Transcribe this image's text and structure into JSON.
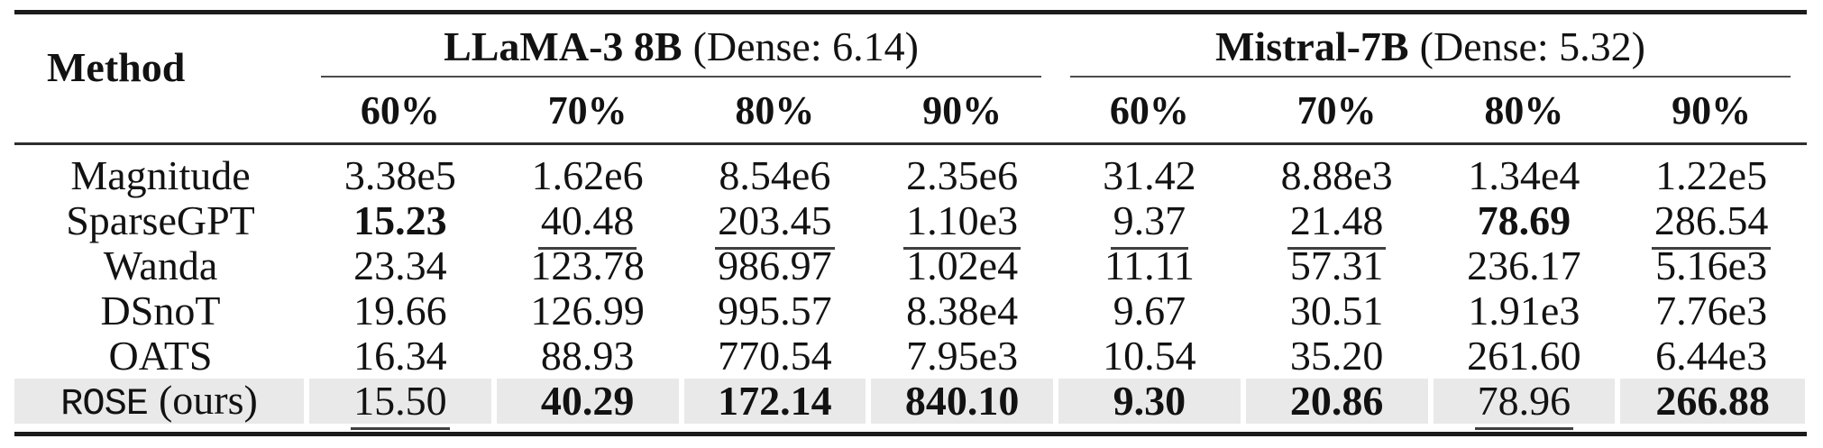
{
  "table": {
    "method_header": "Method",
    "groups": [
      {
        "name": "LLaMA-3 8B",
        "dense": "(Dense: 6.14)",
        "sparsities": [
          "60%",
          "70%",
          "80%",
          "90%"
        ]
      },
      {
        "name": "Mistral-7B",
        "dense": "(Dense: 5.32)",
        "sparsities": [
          "60%",
          "70%",
          "80%",
          "90%"
        ]
      }
    ],
    "emphasis_colors": {
      "text": "#121212",
      "highlight_row_background": "#e9e9e9",
      "rule": "#1b1b1b"
    },
    "rows": [
      {
        "method": "Magnitude",
        "method_suffix": "",
        "highlighted": false,
        "cells": [
          {
            "v": "3.38e5",
            "mark": ""
          },
          {
            "v": "1.62e6",
            "mark": ""
          },
          {
            "v": "8.54e6",
            "mark": ""
          },
          {
            "v": "2.35e6",
            "mark": ""
          },
          {
            "v": "31.42",
            "mark": ""
          },
          {
            "v": "8.88e3",
            "mark": ""
          },
          {
            "v": "1.34e4",
            "mark": ""
          },
          {
            "v": "1.22e5",
            "mark": ""
          }
        ]
      },
      {
        "method": "SparseGPT",
        "method_suffix": "",
        "highlighted": false,
        "cells": [
          {
            "v": "15.23",
            "mark": "best"
          },
          {
            "v": "40.48",
            "mark": "second"
          },
          {
            "v": "203.45",
            "mark": "second"
          },
          {
            "v": "1.10e3",
            "mark": "second"
          },
          {
            "v": "9.37",
            "mark": "second"
          },
          {
            "v": "21.48",
            "mark": "second"
          },
          {
            "v": "78.69",
            "mark": "best"
          },
          {
            "v": "286.54",
            "mark": "second"
          }
        ]
      },
      {
        "method": "Wanda",
        "method_suffix": "",
        "highlighted": false,
        "cells": [
          {
            "v": "23.34",
            "mark": ""
          },
          {
            "v": "123.78",
            "mark": ""
          },
          {
            "v": "986.97",
            "mark": ""
          },
          {
            "v": "1.02e4",
            "mark": ""
          },
          {
            "v": "11.11",
            "mark": ""
          },
          {
            "v": "57.31",
            "mark": ""
          },
          {
            "v": "236.17",
            "mark": ""
          },
          {
            "v": "5.16e3",
            "mark": ""
          }
        ]
      },
      {
        "method": "DSnoT",
        "method_suffix": "",
        "highlighted": false,
        "cells": [
          {
            "v": "19.66",
            "mark": ""
          },
          {
            "v": "126.99",
            "mark": ""
          },
          {
            "v": "995.57",
            "mark": ""
          },
          {
            "v": "8.38e4",
            "mark": ""
          },
          {
            "v": "9.67",
            "mark": ""
          },
          {
            "v": "30.51",
            "mark": ""
          },
          {
            "v": "1.91e3",
            "mark": ""
          },
          {
            "v": "7.76e3",
            "mark": ""
          }
        ]
      },
      {
        "method": "OATS",
        "method_suffix": "",
        "highlighted": false,
        "cells": [
          {
            "v": "16.34",
            "mark": ""
          },
          {
            "v": "88.93",
            "mark": ""
          },
          {
            "v": "770.54",
            "mark": ""
          },
          {
            "v": "7.95e3",
            "mark": ""
          },
          {
            "v": "10.54",
            "mark": ""
          },
          {
            "v": "35.20",
            "mark": ""
          },
          {
            "v": "261.60",
            "mark": ""
          },
          {
            "v": "6.44e3",
            "mark": ""
          }
        ]
      },
      {
        "method": "ROSE",
        "method_suffix": "(ours)",
        "highlighted": true,
        "cells": [
          {
            "v": "15.50",
            "mark": "second"
          },
          {
            "v": "40.29",
            "mark": "best"
          },
          {
            "v": "172.14",
            "mark": "best"
          },
          {
            "v": "840.10",
            "mark": "best"
          },
          {
            "v": "9.30",
            "mark": "best"
          },
          {
            "v": "20.86",
            "mark": "best"
          },
          {
            "v": "78.96",
            "mark": "second"
          },
          {
            "v": "266.88",
            "mark": "best"
          }
        ]
      }
    ]
  }
}
